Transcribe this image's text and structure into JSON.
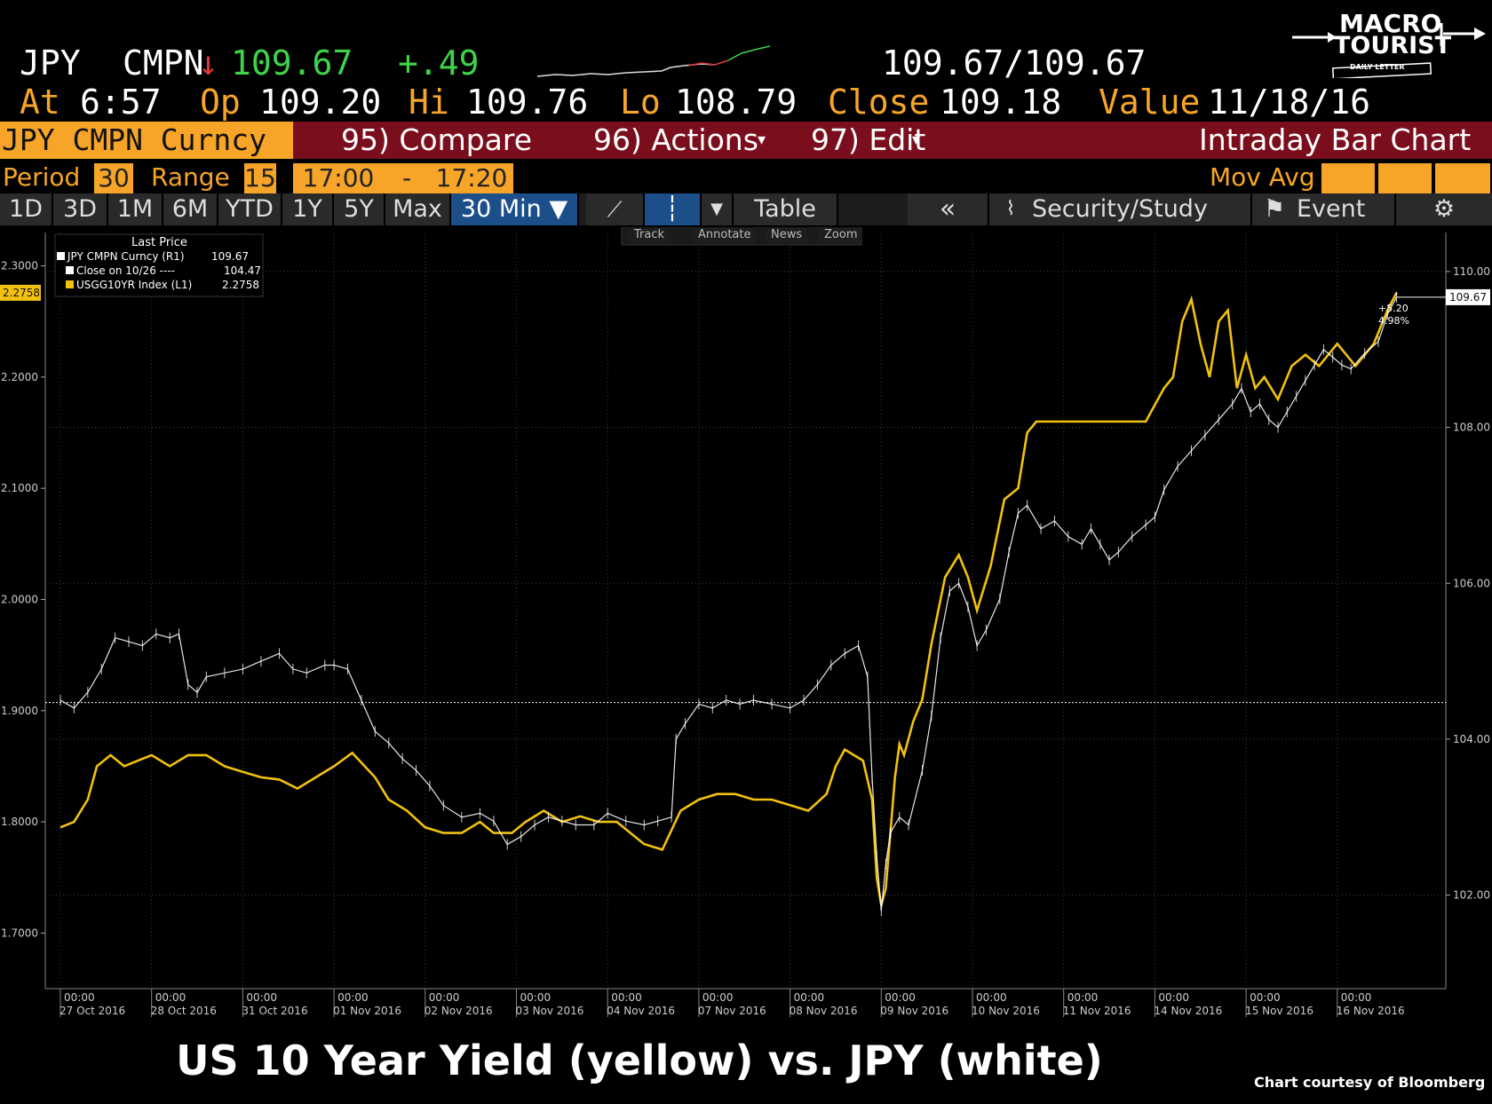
{
  "quote": {
    "ticker": "JPY",
    "source": "CMPN",
    "last": "109.67",
    "change": "+.49",
    "bid_ask": "109.67/109.67",
    "at_label": "At",
    "at_value": "6:57",
    "op_label": "Op",
    "op_value": "109.20",
    "hi_label": "Hi",
    "hi_value": "109.76",
    "lo_label": "Lo",
    "lo_value": "108.79",
    "close_label": "Close",
    "close_value": "109.18",
    "value_label": "Value",
    "value_date": "11/18/16"
  },
  "logo": {
    "line1": "MACRO",
    "line2": "TOURIST",
    "line3": "DAILY LETTER"
  },
  "toolbar": {
    "security": "JPY CMPN Curncy",
    "compare": "95) Compare",
    "actions": "96) Actions",
    "edit": "97) Edit",
    "chart_name": "Intraday Bar Chart"
  },
  "params": {
    "period_label": "Period",
    "period_value": "30",
    "range_label": "Range",
    "range_value": "15",
    "start_time": "17:00",
    "dash": "-",
    "end_time": "17:20",
    "mov_avg_label": "Mov Avg"
  },
  "tabs": [
    "1D",
    "3D",
    "1M",
    "6M",
    "YTD",
    "1Y",
    "5Y",
    "Max",
    "30 Min ▼"
  ],
  "tools": {
    "table": "Table",
    "back": "«",
    "security_study": "Security/Study",
    "event": "Event",
    "track": "Track",
    "annotate": "Annotate",
    "news": "News",
    "zoom": "Zoom"
  },
  "legend": {
    "title": "Last Price",
    "rows": [
      {
        "label": "JPY CMPN Curncy  (R1)",
        "value": "109.67"
      },
      {
        "label": "Close on 10/26  ----",
        "value": "104.47"
      },
      {
        "label": "USGG10YR Index  (L1)",
        "value": "2.2758"
      }
    ]
  },
  "chart_data": {
    "type": "line",
    "title": "US 10 Year Yield (yellow) vs. JPY (white)",
    "credit": "Chart courtesy of Bloomberg",
    "x_categories": [
      "27 Oct 2016",
      "28 Oct 2016",
      "31 Oct 2016",
      "01 Nov 2016",
      "02 Nov 2016",
      "03 Nov 2016",
      "04 Nov 2016",
      "07 Nov 2016",
      "08 Nov 2016",
      "09 Nov 2016",
      "10 Nov 2016",
      "11 Nov 2016",
      "14 Nov 2016",
      "15 Nov 2016",
      "16 Nov 2016"
    ],
    "x_tick_time": "00:00",
    "left_axis": {
      "label": "USGG10YR",
      "ylim": [
        1.65,
        2.33
      ],
      "ticks": [
        "2.3000",
        "2.2000",
        "2.1000",
        "2.0000",
        "1.9000",
        "1.8000",
        "1.7000"
      ],
      "last_value_tag": "2.2758"
    },
    "right_axis": {
      "label": "JPY",
      "ylim": [
        100.8,
        110.5
      ],
      "ticks": [
        "110.00",
        "108.00",
        "106.00",
        "104.00",
        "102.00"
      ],
      "last_value_tag": "109.67",
      "reference_close": 104.47
    },
    "change_annotation": {
      "abs": "+5.20",
      "pct": "4.98%"
    },
    "series": [
      {
        "name": "USGG10YR Index",
        "axis": "left",
        "color": "#f2c10f",
        "points": [
          [
            0.0,
            1.795
          ],
          [
            0.15,
            1.8
          ],
          [
            0.3,
            1.82
          ],
          [
            0.4,
            1.85
          ],
          [
            0.55,
            1.86
          ],
          [
            0.7,
            1.85
          ],
          [
            0.85,
            1.855
          ],
          [
            1.0,
            1.86
          ],
          [
            1.2,
            1.85
          ],
          [
            1.4,
            1.86
          ],
          [
            1.6,
            1.86
          ],
          [
            1.8,
            1.85
          ],
          [
            2.0,
            1.845
          ],
          [
            2.2,
            1.84
          ],
          [
            2.4,
            1.838
          ],
          [
            2.6,
            1.83
          ],
          [
            2.8,
            1.84
          ],
          [
            3.0,
            1.85
          ],
          [
            3.2,
            1.862
          ],
          [
            3.45,
            1.84
          ],
          [
            3.6,
            1.82
          ],
          [
            3.8,
            1.81
          ],
          [
            4.0,
            1.795
          ],
          [
            4.2,
            1.79
          ],
          [
            4.4,
            1.79
          ],
          [
            4.6,
            1.8
          ],
          [
            4.75,
            1.79
          ],
          [
            4.95,
            1.79
          ],
          [
            5.1,
            1.8
          ],
          [
            5.3,
            1.81
          ],
          [
            5.5,
            1.8
          ],
          [
            5.7,
            1.805
          ],
          [
            5.9,
            1.8
          ],
          [
            6.1,
            1.8
          ],
          [
            6.25,
            1.79
          ],
          [
            6.4,
            1.78
          ],
          [
            6.6,
            1.775
          ],
          [
            6.8,
            1.81
          ],
          [
            7.0,
            1.82
          ],
          [
            7.2,
            1.825
          ],
          [
            7.4,
            1.825
          ],
          [
            7.6,
            1.82
          ],
          [
            7.8,
            1.82
          ],
          [
            8.0,
            1.815
          ],
          [
            8.2,
            1.81
          ],
          [
            8.4,
            1.825
          ],
          [
            8.5,
            1.85
          ],
          [
            8.6,
            1.865
          ],
          [
            8.7,
            1.86
          ],
          [
            8.8,
            1.855
          ],
          [
            8.9,
            1.82
          ],
          [
            8.95,
            1.75
          ],
          [
            9.0,
            1.725
          ],
          [
            9.05,
            1.74
          ],
          [
            9.1,
            1.79
          ],
          [
            9.15,
            1.84
          ],
          [
            9.2,
            1.87
          ],
          [
            9.25,
            1.86
          ],
          [
            9.35,
            1.89
          ],
          [
            9.45,
            1.91
          ],
          [
            9.55,
            1.96
          ],
          [
            9.7,
            2.02
          ],
          [
            9.85,
            2.04
          ],
          [
            9.95,
            2.02
          ],
          [
            10.05,
            1.99
          ],
          [
            10.2,
            2.03
          ],
          [
            10.35,
            2.09
          ],
          [
            10.5,
            2.1
          ],
          [
            10.6,
            2.15
          ],
          [
            10.7,
            2.16
          ],
          [
            11.0,
            2.16
          ],
          [
            11.3,
            2.16
          ],
          [
            11.6,
            2.16
          ],
          [
            11.9,
            2.16
          ],
          [
            12.1,
            2.19
          ],
          [
            12.2,
            2.2
          ],
          [
            12.3,
            2.25
          ],
          [
            12.4,
            2.27
          ],
          [
            12.5,
            2.23
          ],
          [
            12.6,
            2.2
          ],
          [
            12.7,
            2.25
          ],
          [
            12.8,
            2.26
          ],
          [
            12.9,
            2.19
          ],
          [
            13.0,
            2.22
          ],
          [
            13.1,
            2.19
          ],
          [
            13.2,
            2.2
          ],
          [
            13.35,
            2.18
          ],
          [
            13.5,
            2.21
          ],
          [
            13.65,
            2.22
          ],
          [
            13.8,
            2.21
          ],
          [
            14.0,
            2.23
          ],
          [
            14.2,
            2.21
          ],
          [
            14.4,
            2.23
          ],
          [
            14.55,
            2.26
          ],
          [
            14.65,
            2.276
          ]
        ]
      },
      {
        "name": "JPY CMPN Curncy",
        "axis": "right",
        "color": "#ffffff",
        "points": [
          [
            0.0,
            104.5
          ],
          [
            0.15,
            104.4
          ],
          [
            0.3,
            104.6
          ],
          [
            0.45,
            104.9
          ],
          [
            0.6,
            105.3
          ],
          [
            0.75,
            105.25
          ],
          [
            0.9,
            105.2
          ],
          [
            1.05,
            105.35
          ],
          [
            1.2,
            105.3
          ],
          [
            1.3,
            105.35
          ],
          [
            1.4,
            104.7
          ],
          [
            1.5,
            104.6
          ],
          [
            1.6,
            104.8
          ],
          [
            1.8,
            104.85
          ],
          [
            2.0,
            104.9
          ],
          [
            2.2,
            105.0
          ],
          [
            2.4,
            105.1
          ],
          [
            2.55,
            104.9
          ],
          [
            2.7,
            104.85
          ],
          [
            2.9,
            104.95
          ],
          [
            3.0,
            104.95
          ],
          [
            3.15,
            104.9
          ],
          [
            3.3,
            104.5
          ],
          [
            3.45,
            104.1
          ],
          [
            3.6,
            103.95
          ],
          [
            3.75,
            103.75
          ],
          [
            3.9,
            103.6
          ],
          [
            4.05,
            103.4
          ],
          [
            4.2,
            103.15
          ],
          [
            4.4,
            103.0
          ],
          [
            4.6,
            103.05
          ],
          [
            4.75,
            102.95
          ],
          [
            4.9,
            102.65
          ],
          [
            5.05,
            102.75
          ],
          [
            5.2,
            102.9
          ],
          [
            5.35,
            103.0
          ],
          [
            5.5,
            102.95
          ],
          [
            5.65,
            102.9
          ],
          [
            5.85,
            102.9
          ],
          [
            6.0,
            103.05
          ],
          [
            6.2,
            102.95
          ],
          [
            6.4,
            102.9
          ],
          [
            6.55,
            102.95
          ],
          [
            6.7,
            103.0
          ],
          [
            6.75,
            104.0
          ],
          [
            6.85,
            104.2
          ],
          [
            7.0,
            104.45
          ],
          [
            7.15,
            104.4
          ],
          [
            7.3,
            104.5
          ],
          [
            7.45,
            104.45
          ],
          [
            7.6,
            104.5
          ],
          [
            7.8,
            104.45
          ],
          [
            8.0,
            104.4
          ],
          [
            8.15,
            104.5
          ],
          [
            8.3,
            104.7
          ],
          [
            8.45,
            104.95
          ],
          [
            8.6,
            105.1
          ],
          [
            8.75,
            105.2
          ],
          [
            8.85,
            104.8
          ],
          [
            8.9,
            103.5
          ],
          [
            8.95,
            102.5
          ],
          [
            9.0,
            101.8
          ],
          [
            9.05,
            102.4
          ],
          [
            9.1,
            102.8
          ],
          [
            9.2,
            103.0
          ],
          [
            9.3,
            102.9
          ],
          [
            9.45,
            103.6
          ],
          [
            9.55,
            104.3
          ],
          [
            9.65,
            105.3
          ],
          [
            9.75,
            105.9
          ],
          [
            9.85,
            106.0
          ],
          [
            9.95,
            105.7
          ],
          [
            10.05,
            105.2
          ],
          [
            10.15,
            105.4
          ],
          [
            10.3,
            105.8
          ],
          [
            10.4,
            106.4
          ],
          [
            10.5,
            106.9
          ],
          [
            10.6,
            107.0
          ],
          [
            10.75,
            106.7
          ],
          [
            10.9,
            106.8
          ],
          [
            11.05,
            106.6
          ],
          [
            11.2,
            106.5
          ],
          [
            11.3,
            106.7
          ],
          [
            11.4,
            106.5
          ],
          [
            11.5,
            106.3
          ],
          [
            11.6,
            106.4
          ],
          [
            11.75,
            106.6
          ],
          [
            11.9,
            106.75
          ],
          [
            12.0,
            106.85
          ],
          [
            12.1,
            107.2
          ],
          [
            12.25,
            107.5
          ],
          [
            12.4,
            107.7
          ],
          [
            12.55,
            107.9
          ],
          [
            12.7,
            108.1
          ],
          [
            12.85,
            108.3
          ],
          [
            12.95,
            108.5
          ],
          [
            13.05,
            108.2
          ],
          [
            13.15,
            108.3
          ],
          [
            13.25,
            108.1
          ],
          [
            13.35,
            108.0
          ],
          [
            13.45,
            108.2
          ],
          [
            13.55,
            108.4
          ],
          [
            13.65,
            108.6
          ],
          [
            13.75,
            108.8
          ],
          [
            13.85,
            109.0
          ],
          [
            13.95,
            108.9
          ],
          [
            14.05,
            108.8
          ],
          [
            14.15,
            108.75
          ],
          [
            14.3,
            108.95
          ],
          [
            14.45,
            109.1
          ],
          [
            14.55,
            109.45
          ],
          [
            14.65,
            109.67
          ]
        ]
      }
    ]
  }
}
